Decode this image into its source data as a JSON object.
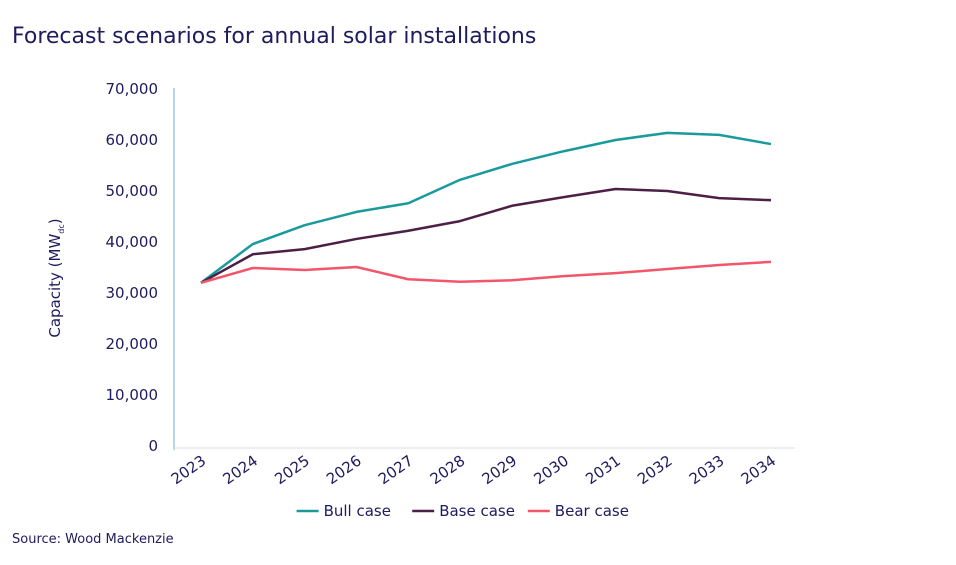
{
  "chart_data": {
    "type": "line",
    "title": "Forecast scenarios for annual solar installations",
    "y_label": [
      "Capacity (MW",
      "dc",
      ")"
    ],
    "source": "Source: Wood Mackenzie",
    "categories": [
      "2023",
      "2024",
      "2025",
      "2026",
      "2027",
      "2028",
      "2029",
      "2030",
      "2031",
      "2032",
      "2033",
      "2034"
    ],
    "series": [
      {
        "name": "Bull case",
        "color": "#1a9a9c",
        "values": [
          32000,
          39600,
          43300,
          45900,
          47600,
          52200,
          55300,
          57800,
          60000,
          61400,
          61000,
          59200
        ]
      },
      {
        "name": "Base case",
        "color": "#4d1f45",
        "values": [
          32000,
          37600,
          38600,
          40600,
          42200,
          44100,
          47100,
          48800,
          50400,
          50000,
          48600,
          48200
        ]
      },
      {
        "name": "Bear case",
        "color": "#f2566a",
        "values": [
          32000,
          34900,
          34500,
          35100,
          32700,
          32200,
          32500,
          33300,
          33900,
          34700,
          35500,
          36100
        ]
      }
    ],
    "ylim": [
      0,
      70000
    ],
    "yticks": [
      0,
      {
        "value": 10000,
        "label": "10,000"
      },
      {
        "value": 20000,
        "label": "20,000"
      },
      {
        "value": 30000,
        "label": "30,000"
      },
      {
        "value": 40000,
        "label": "40,000"
      },
      {
        "value": 50000,
        "label": "50,000"
      },
      {
        "value": 60000,
        "label": "60,000"
      },
      {
        "value": 70000,
        "label": "70,000"
      }
    ],
    "grid": false,
    "legend": "bottom"
  }
}
